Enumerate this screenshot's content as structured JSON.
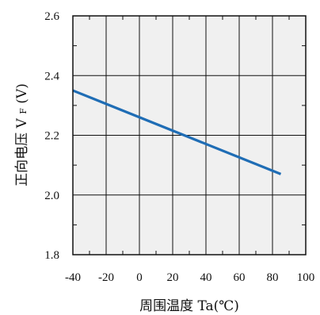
{
  "chart_data": {
    "type": "line",
    "xlabel": "周围温度 Ta(℃)",
    "ylabel_main": "正向电压 V",
    "ylabel_sub": "F",
    "ylabel_unit": "(V)",
    "xlim": [
      -40,
      100
    ],
    "ylim": [
      1.8,
      2.6
    ],
    "x_ticks": [
      -40,
      -20,
      0,
      20,
      40,
      60,
      80,
      100
    ],
    "x_tick_labels": [
      "-40",
      "-20",
      "0",
      "20",
      "40",
      "60",
      "80",
      "100"
    ],
    "y_ticks": [
      1.8,
      2.0,
      2.2,
      2.4,
      2.6
    ],
    "y_tick_labels": [
      "1.8",
      "2.0",
      "2.2",
      "2.4",
      "2.6"
    ],
    "grid": true,
    "colors": {
      "line": "#1f6db5",
      "plot_background": "#f0f0f0",
      "grid": "#111111"
    },
    "series": [
      {
        "x": [
          -40,
          85
        ],
        "y": [
          2.35,
          2.07
        ]
      }
    ]
  }
}
